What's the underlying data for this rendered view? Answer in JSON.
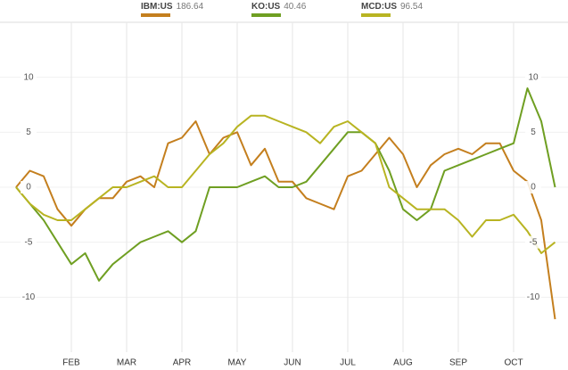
{
  "chart_data": {
    "type": "line",
    "categories": [
      null,
      null,
      null,
      null,
      "FEB",
      null,
      null,
      null,
      "MAR",
      null,
      null,
      null,
      "APR",
      null,
      null,
      null,
      "MAY",
      null,
      null,
      null,
      "JUN",
      null,
      null,
      null,
      "JUL",
      null,
      null,
      null,
      "AUG",
      null,
      null,
      null,
      "SEP",
      null,
      null,
      null,
      "OCT",
      null,
      null,
      null
    ],
    "series": [
      {
        "name": "IBM:US",
        "legend_value": 186.64,
        "color": "#c47f1e",
        "values": [
          0,
          1.5,
          1,
          -2,
          -3.5,
          -2,
          -1,
          -1,
          0.5,
          1,
          0,
          4,
          4.5,
          6,
          3,
          4.5,
          5,
          2,
          3.5,
          0.5,
          0.5,
          -1,
          -1.5,
          -2,
          1,
          1.5,
          3,
          4.5,
          3,
          0,
          2,
          3,
          3.5,
          3,
          4,
          4,
          1.5,
          0.5,
          -3,
          -12
        ]
      },
      {
        "name": "KO:US",
        "legend_value": 40.46,
        "color": "#6f9f22",
        "values": [
          0,
          -1.5,
          -3,
          -5,
          -7,
          -6,
          -8.5,
          -7,
          -6,
          -5,
          -4.5,
          -4,
          -5,
          -4,
          0,
          0,
          0,
          0.5,
          1,
          0,
          0,
          0.5,
          2,
          3.5,
          5,
          5,
          4,
          1.5,
          -2,
          -3,
          -2,
          1.5,
          2,
          2.5,
          3,
          3.5,
          4,
          9,
          6,
          0
        ]
      },
      {
        "name": "MCD:US",
        "legend_value": 96.54,
        "color": "#b8b422",
        "values": [
          0,
          -1.5,
          -2.5,
          -3,
          -3,
          -2,
          -1,
          0,
          0,
          0.5,
          1,
          0,
          0,
          1.5,
          3,
          4,
          5.5,
          6.5,
          6.5,
          6,
          5.5,
          5,
          4,
          5.5,
          6,
          5,
          4,
          0,
          -1,
          -2,
          -2,
          -2,
          -3,
          -4.5,
          -3,
          -3,
          -2.5,
          -4,
          -6,
          -5
        ]
      }
    ],
    "ylim": [
      -15,
      15
    ],
    "yticks": [
      -10,
      -5,
      0,
      5,
      10
    ],
    "grid": true
  }
}
